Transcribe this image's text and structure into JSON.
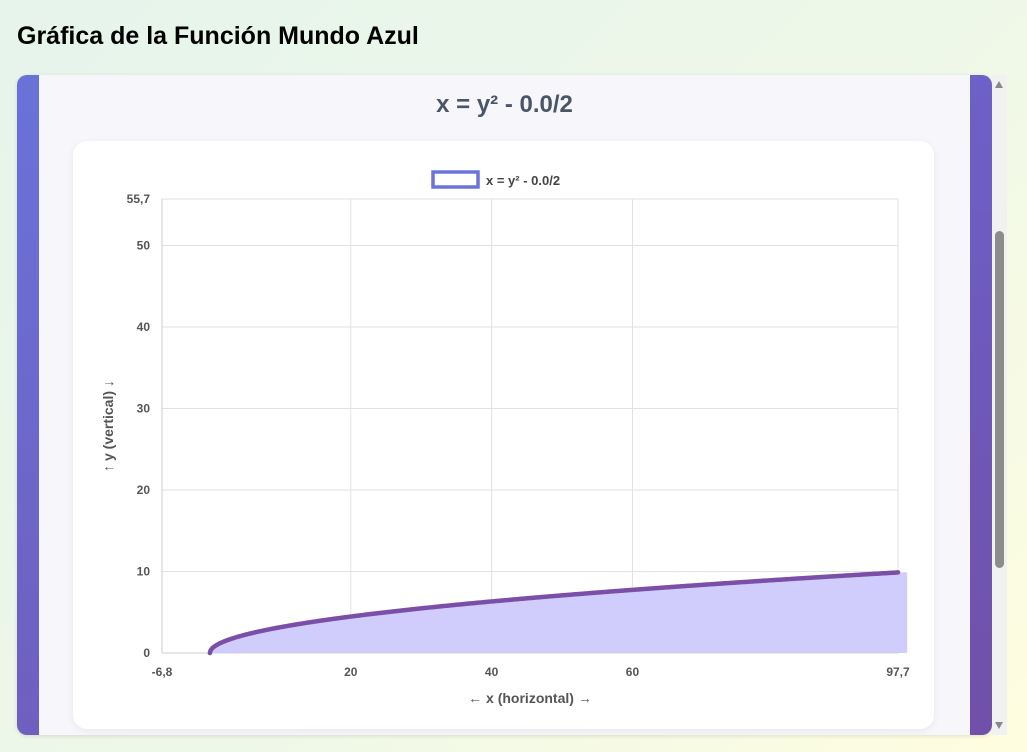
{
  "page": {
    "title": "Gráfica de la Función Mundo Azul"
  },
  "card": {
    "title": "x = y² - 0.0/2"
  },
  "chart_data": {
    "type": "area",
    "equation": "x = y² - 0.0/2",
    "series": [
      {
        "name": "x = y² - 0.0/2",
        "line_color": "#7b4fa8",
        "fill_color": "#cdc9fb",
        "legend_box_color": "#6b74dc"
      }
    ],
    "xlabel": "← x (horizontal) →",
    "ylabel": "↑ y (vertical) ↓",
    "xlim": [
      -6.8,
      97.7
    ],
    "ylim": [
      0,
      55.7
    ],
    "x_ticks": [
      -6.8,
      20,
      40,
      60,
      97.7
    ],
    "x_tick_labels": [
      "-6,8",
      "20",
      "40",
      "60",
      "97,7"
    ],
    "y_ticks": [
      0,
      10,
      20,
      30,
      40,
      50,
      55.7
    ],
    "y_tick_labels": [
      "0",
      "10",
      "20",
      "30",
      "40",
      "50",
      "55,7"
    ],
    "grid": true,
    "legend": "top",
    "fill_right_x": 99
  }
}
